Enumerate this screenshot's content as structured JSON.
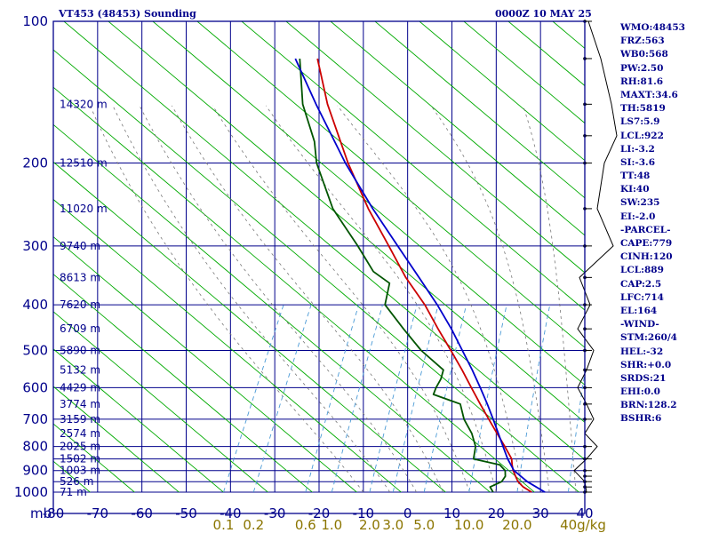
{
  "header": {
    "station": "VT453 (48453) Sounding",
    "time": "0000Z 10 MAY 25"
  },
  "indices": [
    "WMO:48453",
    "FRZ:563",
    "WB0:568",
    "PW:2.50",
    "RH:81.6",
    "MAXT:34.6",
    "TH:5819",
    "LS7:5.9",
    "LCL:922",
    "LI:-3.2",
    "SI:-3.6",
    "TT:48",
    "KI:40",
    "SW:235",
    "EI:-2.0",
    "-PARCEL-",
    "CAPE:779",
    "CINH:120",
    "LCL:889",
    "CAP:2.5",
    "LFC:714",
    "EL:164",
    "-WIND-",
    "STM:260/4",
    "HEL:-32",
    "SHR:+0.0",
    "SRDS:21",
    "EHI:0.0",
    "BRN:128.2",
    "BSHR:6"
  ],
  "colors": {
    "background": "#ffffff",
    "frame": "#00008b",
    "grid": "#00008b",
    "dry_adiabat": "#00aa00",
    "moist_adiabat": "#777777",
    "mixing_ratio": "#4a9ad6",
    "temperature": "#cc0000",
    "dewpoint": "#005500",
    "parcel": "#0000cc",
    "text": "#00008b",
    "mixing_label": "#8b7500",
    "wind": "#000000"
  },
  "chart_data": {
    "type": "line",
    "title": "VT453 (48453) Sounding",
    "subtitle": "0000Z 10 MAY 25",
    "y_axis_unit": "mb",
    "pressure_ticks": [
      100,
      200,
      300,
      400,
      500,
      600,
      700,
      800,
      900,
      1000
    ],
    "ylim": [
      1000,
      100
    ],
    "temperature_ticks": [
      -80,
      -70,
      -60,
      -50,
      -40,
      -30,
      -20,
      -10,
      0,
      10,
      20,
      30,
      40
    ],
    "xlim": [
      -80,
      40
    ],
    "skew_degC_per_decade": 55,
    "height_labels": [
      {
        "p": 150,
        "text": "14320 m"
      },
      {
        "p": 200,
        "text": "12510 m"
      },
      {
        "p": 250,
        "text": "11020 m"
      },
      {
        "p": 300,
        "text": "9740 m"
      },
      {
        "p": 350,
        "text": "8613 m"
      },
      {
        "p": 400,
        "text": "7620 m"
      },
      {
        "p": 450,
        "text": "6709 m"
      },
      {
        "p": 500,
        "text": "5890 m"
      },
      {
        "p": 550,
        "text": "5132 m"
      },
      {
        "p": 600,
        "text": "4429 m"
      },
      {
        "p": 650,
        "text": "3774 m"
      },
      {
        "p": 700,
        "text": "3159 m"
      },
      {
        "p": 750,
        "text": "2574 m"
      },
      {
        "p": 800,
        "text": "2025 m"
      },
      {
        "p": 850,
        "text": "1502 m"
      },
      {
        "p": 900,
        "text": "1003 m"
      },
      {
        "p": 950,
        "text": "526 m"
      },
      {
        "p": 1000,
        "text": "71 m"
      }
    ],
    "mixing_ratio_labels": [
      "0.1",
      "0.2",
      "0.6",
      "1.0",
      "2.0",
      "3.0",
      "5.0",
      "10.0",
      "20.0",
      "40g/kg"
    ],
    "mixing_ratio_values": [
      0.1,
      0.2,
      0.6,
      1.0,
      2.0,
      3.0,
      5.0,
      10.0,
      20.0,
      40.0
    ],
    "series": [
      {
        "key": "temperature",
        "values": [
          [
            1000,
            28.0
          ],
          [
            975,
            25.5
          ],
          [
            950,
            23.7
          ],
          [
            925,
            22.5
          ],
          [
            900,
            21.3
          ],
          [
            875,
            20.4
          ],
          [
            850,
            19.6
          ],
          [
            800,
            16.6
          ],
          [
            750,
            13.3
          ],
          [
            700,
            9.8
          ],
          [
            650,
            6.1
          ],
          [
            600,
            2.2
          ],
          [
            550,
            -2.0
          ],
          [
            500,
            -6.8
          ],
          [
            450,
            -12.2
          ],
          [
            400,
            -18.0
          ],
          [
            350,
            -25.5
          ],
          [
            300,
            -33.0
          ],
          [
            250,
            -42.0
          ],
          [
            200,
            -51.9
          ],
          [
            150,
            -63.4
          ],
          [
            120,
            -71.0
          ]
        ]
      },
      {
        "key": "dewpoint",
        "values": [
          [
            1000,
            19.3
          ],
          [
            975,
            18.0
          ],
          [
            950,
            20.0
          ],
          [
            925,
            20.2
          ],
          [
            900,
            19.5
          ],
          [
            875,
            17.6
          ],
          [
            850,
            11.0
          ],
          [
            800,
            10.0
          ],
          [
            750,
            7.6
          ],
          [
            700,
            4.2
          ],
          [
            650,
            1.6
          ],
          [
            620,
            -5.6
          ],
          [
            600,
            -5.8
          ],
          [
            575,
            -5.7
          ],
          [
            550,
            -6.2
          ],
          [
            500,
            -13.5
          ],
          [
            450,
            -20.0
          ],
          [
            400,
            -27.0
          ],
          [
            360,
            -28.5
          ],
          [
            340,
            -33.5
          ],
          [
            300,
            -40.0
          ],
          [
            250,
            -50.0
          ],
          [
            200,
            -59.0
          ],
          [
            180,
            -62.0
          ],
          [
            150,
            -69.0
          ],
          [
            120,
            -75.0
          ]
        ]
      },
      {
        "key": "parcel",
        "values": [
          [
            1000,
            31.0
          ],
          [
            950,
            25.8
          ],
          [
            900,
            21.5
          ],
          [
            850,
            18.7
          ],
          [
            800,
            16.2
          ],
          [
            750,
            13.6
          ],
          [
            700,
            10.8
          ],
          [
            650,
            7.7
          ],
          [
            600,
            4.2
          ],
          [
            550,
            0.3
          ],
          [
            500,
            -4.2
          ],
          [
            450,
            -9.2
          ],
          [
            400,
            -15.2
          ],
          [
            350,
            -22.5
          ],
          [
            300,
            -31.0
          ],
          [
            250,
            -41.0
          ],
          [
            200,
            -52.5
          ],
          [
            150,
            -66.0
          ],
          [
            120,
            -76.0
          ]
        ]
      }
    ],
    "wind_levels_mb": [
      100,
      120,
      150,
      175,
      200,
      250,
      300,
      350,
      400,
      450,
      500,
      550,
      600,
      650,
      700,
      800,
      850,
      900,
      925,
      950,
      975,
      1000
    ],
    "grid": true
  }
}
